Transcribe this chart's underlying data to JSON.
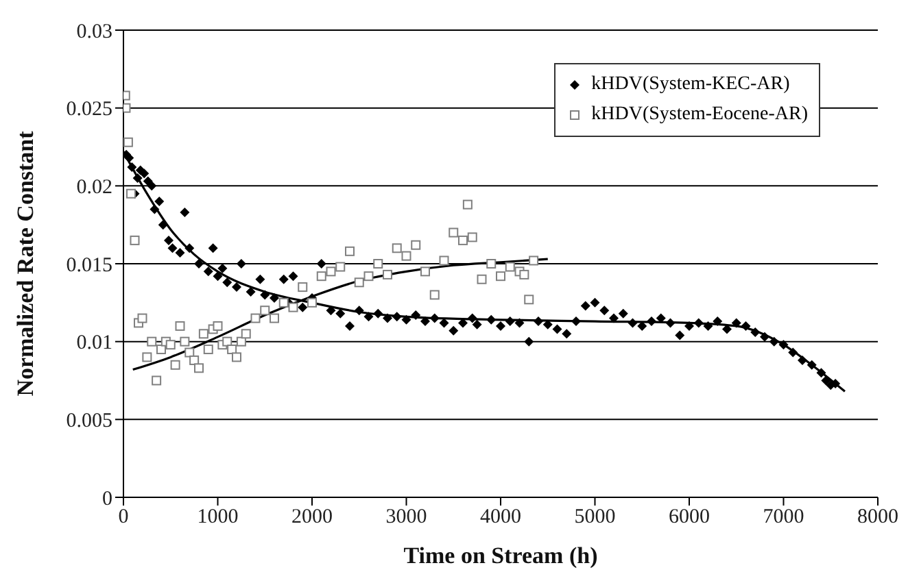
{
  "chart_data": {
    "type": "scatter",
    "xlabel": "Time on Stream (h)",
    "ylabel": "Normalized Rate Constant",
    "xlim": [
      0,
      8000
    ],
    "xticks": [
      0,
      1000,
      2000,
      3000,
      4000,
      5000,
      6000,
      7000,
      8000
    ],
    "ylim": [
      0,
      0.03
    ],
    "yticks": [
      0,
      0.005,
      0.01,
      0.015,
      0.02,
      0.025,
      0.03
    ],
    "grid": "y",
    "legend": "top right",
    "series": [
      {
        "name": "kHDV(System-KEC-AR)",
        "marker": "diamond",
        "color": "#000000",
        "x": [
          30,
          60,
          90,
          120,
          150,
          180,
          220,
          260,
          300,
          330,
          380,
          420,
          480,
          520,
          600,
          650,
          700,
          800,
          900,
          950,
          1000,
          1050,
          1100,
          1200,
          1250,
          1350,
          1450,
          1500,
          1600,
          1700,
          1750,
          1800,
          1900,
          2000,
          2100,
          2200,
          2300,
          2400,
          2500,
          2600,
          2700,
          2800,
          2900,
          3000,
          3100,
          3200,
          3300,
          3400,
          3500,
          3600,
          3700,
          3750,
          3900,
          4000,
          4100,
          4200,
          4300,
          4400,
          4500,
          4600,
          4700,
          4800,
          4900,
          5000,
          5100,
          5200,
          5300,
          5400,
          5500,
          5600,
          5700,
          5800,
          5900,
          6000,
          6100,
          6200,
          6300,
          6400,
          6500,
          6600,
          6700,
          6800,
          6900,
          7000,
          7100,
          7200,
          7300,
          7400,
          7450,
          7500,
          7550
        ],
        "values": [
          0.022,
          0.0218,
          0.0212,
          0.0195,
          0.0205,
          0.021,
          0.0208,
          0.0203,
          0.02,
          0.0185,
          0.019,
          0.0175,
          0.0165,
          0.016,
          0.0157,
          0.0183,
          0.016,
          0.015,
          0.0145,
          0.016,
          0.0142,
          0.0147,
          0.0138,
          0.0135,
          0.015,
          0.0132,
          0.014,
          0.013,
          0.0128,
          0.014,
          0.0125,
          0.0142,
          0.0122,
          0.0128,
          0.015,
          0.012,
          0.0118,
          0.011,
          0.012,
          0.0116,
          0.0118,
          0.0115,
          0.0116,
          0.0114,
          0.0117,
          0.0113,
          0.0115,
          0.0112,
          0.0107,
          0.0112,
          0.0115,
          0.0111,
          0.0114,
          0.011,
          0.0113,
          0.0112,
          0.01,
          0.0113,
          0.0111,
          0.0108,
          0.0105,
          0.0113,
          0.0123,
          0.0125,
          0.012,
          0.0115,
          0.0118,
          0.0112,
          0.011,
          0.0113,
          0.0115,
          0.0112,
          0.0104,
          0.011,
          0.0112,
          0.011,
          0.0113,
          0.0108,
          0.0112,
          0.011,
          0.0106,
          0.0103,
          0.01,
          0.0098,
          0.0093,
          0.0088,
          0.0085,
          0.008,
          0.0075,
          0.0072,
          0.0073
        ]
      },
      {
        "name": "kHDV(System-Eocene-AR)",
        "marker": "square",
        "color": "#808080",
        "x": [
          20,
          25,
          50,
          80,
          120,
          160,
          200,
          250,
          300,
          350,
          400,
          450,
          500,
          550,
          600,
          650,
          700,
          750,
          800,
          850,
          900,
          950,
          1000,
          1050,
          1100,
          1150,
          1200,
          1250,
          1300,
          1400,
          1500,
          1600,
          1700,
          1800,
          1900,
          2000,
          2100,
          2200,
          2300,
          2400,
          2500,
          2600,
          2700,
          2800,
          2900,
          3000,
          3100,
          3200,
          3300,
          3400,
          3500,
          3600,
          3650,
          3700,
          3800,
          3900,
          4000,
          4100,
          4200,
          4250,
          4300,
          4350
        ],
        "values": [
          0.0258,
          0.025,
          0.0228,
          0.0195,
          0.0165,
          0.0112,
          0.0115,
          0.009,
          0.01,
          0.0075,
          0.0095,
          0.01,
          0.0098,
          0.0085,
          0.011,
          0.01,
          0.0093,
          0.0088,
          0.0083,
          0.0105,
          0.0095,
          0.0108,
          0.011,
          0.0098,
          0.01,
          0.0095,
          0.009,
          0.01,
          0.0105,
          0.0115,
          0.012,
          0.0115,
          0.0125,
          0.0122,
          0.0135,
          0.0125,
          0.0142,
          0.0145,
          0.0148,
          0.0158,
          0.0138,
          0.0142,
          0.015,
          0.0143,
          0.016,
          0.0155,
          0.0162,
          0.0145,
          0.013,
          0.0152,
          0.017,
          0.0165,
          0.0188,
          0.0167,
          0.014,
          0.015,
          0.0142,
          0.0148,
          0.0145,
          0.0143,
          0.0127,
          0.0152
        ]
      },
      {
        "type": "line",
        "marker": "none",
        "color": "#000000",
        "x": [
          0,
          250,
          500,
          750,
          1000,
          1500,
          2000,
          2500,
          3000,
          4000,
          5000,
          6000,
          6500,
          7000,
          7300,
          7650
        ],
        "values": [
          0.0222,
          0.0195,
          0.0172,
          0.0156,
          0.0145,
          0.0132,
          0.0125,
          0.0119,
          0.0116,
          0.0114,
          0.0113,
          0.0112,
          0.011,
          0.0098,
          0.0085,
          0.0068
        ]
      },
      {
        "type": "line",
        "marker": "none",
        "color": "#000000",
        "x": [
          100,
          500,
          1000,
          1500,
          2000,
          2500,
          3000,
          3500,
          4000,
          4500
        ],
        "values": [
          0.0082,
          0.009,
          0.0103,
          0.0117,
          0.0129,
          0.0139,
          0.0145,
          0.0149,
          0.0151,
          0.0153
        ]
      }
    ]
  }
}
